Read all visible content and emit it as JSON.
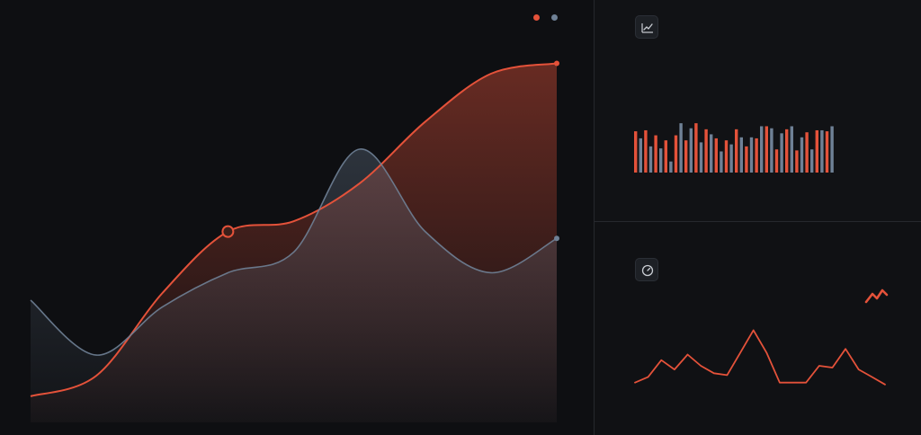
{
  "colors": {
    "accent": "#e4523a",
    "secondary": "#6f8196",
    "background": "#0e0f12"
  },
  "legend": [
    {
      "color": "#e4523a"
    },
    {
      "color": "#6f8196"
    }
  ],
  "icons": {
    "top_panel": "line-chart-icon",
    "bottom_panel": "gauge-icon",
    "trend": "trend-up-icon"
  },
  "chart_data": [
    {
      "type": "area",
      "x": [
        0,
        1,
        2,
        3,
        4,
        5,
        6,
        7,
        8
      ],
      "series": [
        {
          "values": [
            0,
            6,
            30,
            48,
            51,
            62,
            80,
            94,
            97
          ],
          "color": "#e4523a",
          "highlight_index": 3
        },
        {
          "values": [
            28,
            12,
            26,
            36,
            42,
            72,
            48,
            36,
            46
          ],
          "color": "#6f8196"
        }
      ],
      "ylim": [
        -5,
        105
      ],
      "grid": false
    },
    {
      "type": "bar",
      "categories": [
        "1",
        "2",
        "3",
        "4",
        "5",
        "6",
        "7",
        "8",
        "9",
        "10",
        "11",
        "12",
        "13",
        "14",
        "15",
        "16",
        "17",
        "18",
        "19",
        "20",
        "21",
        "22",
        "23",
        "24",
        "25",
        "26",
        "27",
        "28",
        "29",
        "30",
        "31",
        "32",
        "33",
        "34",
        "35",
        "36",
        "37",
        "38",
        "39",
        "40"
      ],
      "series": [
        {
          "values": [
            82,
            0,
            84,
            0,
            74,
            0,
            64,
            0,
            74,
            0,
            64,
            0,
            98,
            0,
            86,
            0,
            68,
            0,
            64,
            0,
            86,
            0,
            52,
            0,
            68,
            0,
            92,
            0,
            46,
            0,
            86,
            0,
            44,
            0,
            80,
            0,
            84,
            0,
            82,
            0
          ],
          "color": "#e4523a"
        },
        {
          "values": [
            0,
            68,
            0,
            52,
            0,
            48,
            0,
            22,
            0,
            98,
            0,
            88,
            0,
            60,
            0,
            76,
            0,
            42,
            0,
            56,
            0,
            70,
            0,
            70,
            0,
            92,
            0,
            88,
            0,
            78,
            0,
            92,
            0,
            70,
            0,
            46,
            0,
            84,
            0,
            92
          ],
          "color": "#6f8196"
        }
      ],
      "ylim": [
        0,
        100
      ],
      "grid": false
    },
    {
      "type": "line",
      "x": [
        0,
        1,
        2,
        3,
        4,
        5,
        6,
        7,
        8,
        9,
        10,
        11,
        12,
        13,
        14,
        15,
        16,
        17,
        18,
        19
      ],
      "series": [
        {
          "values": [
            8,
            14,
            32,
            22,
            38,
            26,
            18,
            16,
            40,
            64,
            40,
            8,
            8,
            8,
            26,
            24,
            44,
            22,
            14,
            6
          ],
          "color": "#e4523a"
        }
      ],
      "ylim": [
        0,
        100
      ],
      "grid": false
    }
  ]
}
